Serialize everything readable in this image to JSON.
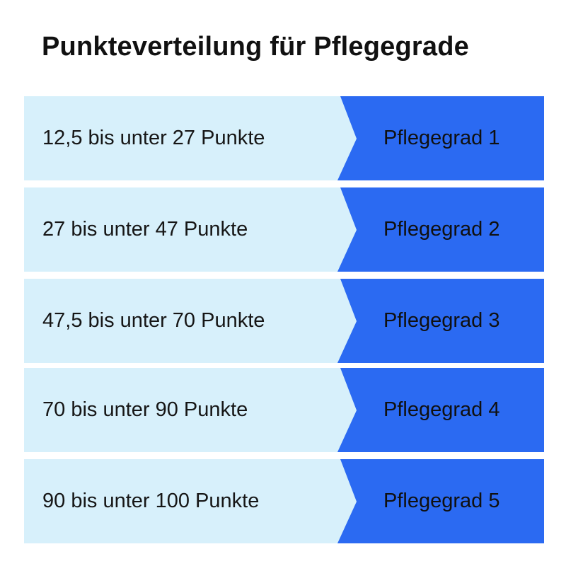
{
  "title": "Punkteverteilung für Pflegegrade",
  "colors": {
    "light": "#d7f0fb",
    "accent": "#2b6af2"
  },
  "rows": [
    {
      "range": "12,5 bis unter 27 Punkte",
      "grade": "Pflegegrad 1"
    },
    {
      "range": "27 bis unter 47 Punkte",
      "grade": "Pflegegrad 2"
    },
    {
      "range": "47,5 bis unter 70 Punkte",
      "grade": "Pflegegrad 3"
    },
    {
      "range": "70 bis unter 90 Punkte",
      "grade": "Pflegegrad 4"
    },
    {
      "range": "90 bis unter 100 Punkte",
      "grade": "Pflegegrad 5"
    }
  ]
}
